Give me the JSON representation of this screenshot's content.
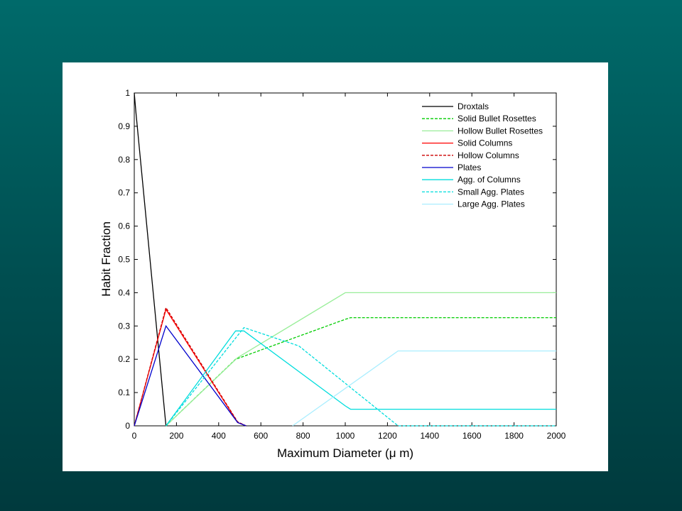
{
  "chart_data": {
    "type": "line",
    "title": "",
    "xlabel": "Maximum Diameter (μ m)",
    "ylabel": "Habit Fraction",
    "xlim": [
      0,
      2000
    ],
    "ylim": [
      0,
      1
    ],
    "xticks": [
      0,
      200,
      400,
      600,
      800,
      1000,
      1200,
      1400,
      1600,
      1800,
      2000
    ],
    "yticks": [
      0,
      0.1,
      0.2,
      0.3,
      0.4,
      0.5,
      0.6,
      0.7,
      0.8,
      0.9,
      1
    ],
    "grid": false,
    "legend_position": "top-right",
    "series": [
      {
        "name": "Droxtals",
        "color": "#000000",
        "dash": "solid",
        "points": [
          [
            0,
            1
          ],
          [
            8,
            0.94
          ],
          [
            150,
            0
          ]
        ]
      },
      {
        "name": "Solid Bullet Rosettes",
        "color": "#00cc00",
        "dash": "dashed",
        "points": [
          [
            150,
            0
          ],
          [
            480,
            0.2
          ],
          [
            1000,
            0.32
          ],
          [
            1025,
            0.325
          ],
          [
            2000,
            0.325
          ]
        ]
      },
      {
        "name": "Hollow Bullet Rosettes",
        "color": "#99ee99",
        "dash": "solid",
        "points": [
          [
            150,
            0
          ],
          [
            490,
            0.205
          ],
          [
            1000,
            0.4
          ],
          [
            1025,
            0.4
          ],
          [
            2000,
            0.4
          ]
        ]
      },
      {
        "name": "Solid Columns",
        "color": "#ff0000",
        "dash": "solid",
        "points": [
          [
            0,
            0
          ],
          [
            150,
            0.35
          ],
          [
            490,
            0.01
          ],
          [
            530,
            0
          ]
        ]
      },
      {
        "name": "Hollow Columns",
        "color": "#cc0000",
        "dash": "dashed",
        "points": [
          [
            0,
            0
          ],
          [
            150,
            0.355
          ],
          [
            490,
            0.012
          ],
          [
            530,
            0
          ]
        ]
      },
      {
        "name": "Plates",
        "color": "#0000cc",
        "dash": "solid",
        "points": [
          [
            0,
            0
          ],
          [
            150,
            0.3
          ],
          [
            490,
            0.01
          ],
          [
            530,
            0
          ]
        ]
      },
      {
        "name": "Agg. of Columns",
        "color": "#00dddd",
        "dash": "solid",
        "points": [
          [
            150,
            0
          ],
          [
            480,
            0.285
          ],
          [
            520,
            0.285
          ],
          [
            1000,
            0.06
          ],
          [
            1025,
            0.05
          ],
          [
            2000,
            0.05
          ]
        ]
      },
      {
        "name": "Small Agg. Plates",
        "color": "#00dddd",
        "dash": "dashed",
        "points": [
          [
            150,
            0
          ],
          [
            520,
            0.295
          ],
          [
            780,
            0.24
          ],
          [
            1250,
            0
          ],
          [
            2000,
            0
          ]
        ]
      },
      {
        "name": "Large Agg. Plates",
        "color": "#aaeeff",
        "dash": "solid",
        "points": [
          [
            750,
            0
          ],
          [
            1250,
            0.225
          ],
          [
            2000,
            0.225
          ]
        ]
      }
    ]
  }
}
